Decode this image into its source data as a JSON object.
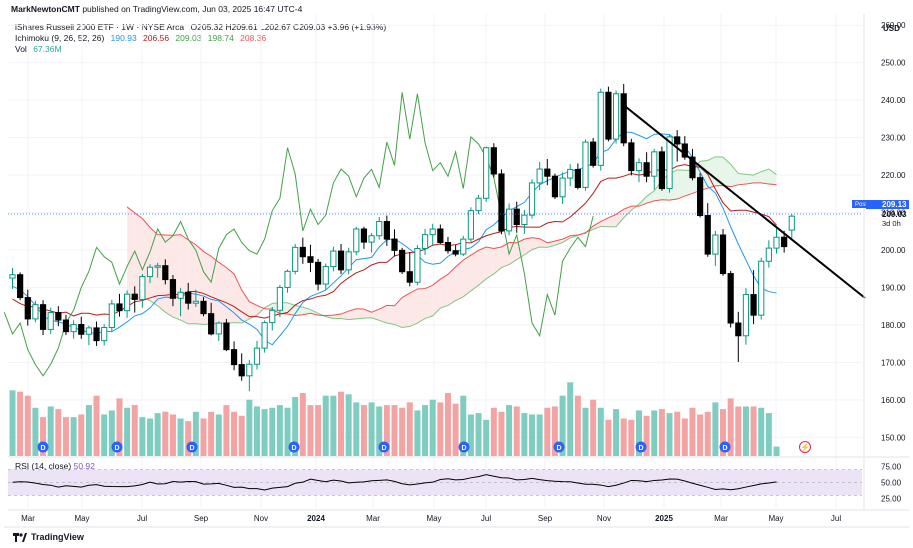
{
  "publisher": {
    "author": "MarkNewtonCMT",
    "text": "published on TradingView.com, Jun 03, 2025 16:47 UTC-4"
  },
  "legend": {
    "symbol": "iShares Russell 2000 ETF · 1W · NYSE Arca",
    "ohlc": "O205.32 H209.61 L202.67 C209.03 +3.96 (+1.93%)",
    "ichimoku_name": "Ichimoku (9, 26, 52, 26)",
    "ichimoku_values": [
      "190.93",
      "206.56",
      "209.03",
      "198.74",
      "208.36"
    ],
    "vol_name": "Vol",
    "vol_value": "67.36M",
    "rsi_name": "RSI (14, close)",
    "rsi_value": "50.92"
  },
  "colors": {
    "up": "#089981",
    "down": "#000000",
    "tenkan": "#2196f3",
    "kijun": "#b71c1c",
    "chikou": "#43a047",
    "span_a": "#81c784",
    "span_b": "#ef5350",
    "vol_up": "#7fcdc1",
    "vol_down": "#f4a3a3",
    "rsi": "#7e57c2",
    "rsi_band": "#ede3f7"
  },
  "chart_data": {
    "type": "candlestick",
    "currency": "USD",
    "ylim": [
      145,
      263
    ],
    "y_ticks": [
      150,
      160,
      170,
      180,
      190,
      200,
      210,
      220,
      230,
      240,
      250,
      260
    ],
    "x_labels": [
      "Mar",
      "May",
      "Jul",
      "Sep",
      "Nov",
      "2024",
      "Mar",
      "May",
      "Jul",
      "Sep",
      "Nov",
      "2025",
      "Mar",
      "May",
      "Jul"
    ],
    "price_tags": {
      "post_label": "Post",
      "post_value": "209.13",
      "last_value": "209.03",
      "countdown": "3d 0h"
    },
    "rsi_ticks": [
      "75.00",
      "50.00",
      "25.00"
    ],
    "candles": [
      [
        192.5,
        195.2,
        189.6,
        193.4
      ],
      [
        193.4,
        194.0,
        186.6,
        187.3
      ],
      [
        187.3,
        189.4,
        179.8,
        181.6
      ],
      [
        181.6,
        186.4,
        180.7,
        185.4
      ],
      [
        185.4,
        186.6,
        177.3,
        178.8
      ],
      [
        178.8,
        184.6,
        177.6,
        183.3
      ],
      [
        183.3,
        185.0,
        179.7,
        181.3
      ],
      [
        181.3,
        182.7,
        177.3,
        178.2
      ],
      [
        178.2,
        181.2,
        176.3,
        180.1
      ],
      [
        180.1,
        182.2,
        176.3,
        177.5
      ],
      [
        177.5,
        179.8,
        174.6,
        179.2
      ],
      [
        179.2,
        180.9,
        174.4,
        175.8
      ],
      [
        175.8,
        180.2,
        174.5,
        179.3
      ],
      [
        179.3,
        186.7,
        178.2,
        185.6
      ],
      [
        185.6,
        188.3,
        182.2,
        183.8
      ],
      [
        183.8,
        189.2,
        181.9,
        188.2
      ],
      [
        188.2,
        190.3,
        183.3,
        186.8
      ],
      [
        186.8,
        193.6,
        184.6,
        192.9
      ],
      [
        192.9,
        196.2,
        191.2,
        195.4
      ],
      [
        195.4,
        196.6,
        192.6,
        195.8
      ],
      [
        195.8,
        197.5,
        190.8,
        192.1
      ],
      [
        192.1,
        193.3,
        185.0,
        187.1
      ],
      [
        187.1,
        189.9,
        182.3,
        188.7
      ],
      [
        188.7,
        191.2,
        184.1,
        185.8
      ],
      [
        185.8,
        189.4,
        184.8,
        186.3
      ],
      [
        186.3,
        187.4,
        182.3,
        183.0
      ],
      [
        183.0,
        185.9,
        177.2,
        177.6
      ],
      [
        177.6,
        180.9,
        175.7,
        180.5
      ],
      [
        180.5,
        181.6,
        173.0,
        173.4
      ],
      [
        173.4,
        175.6,
        167.9,
        169.4
      ],
      [
        169.4,
        172.4,
        165.1,
        166.4
      ],
      [
        166.4,
        170.6,
        162.3,
        169.5
      ],
      [
        169.5,
        175.7,
        168.1,
        173.8
      ],
      [
        173.8,
        181.2,
        172.6,
        180.6
      ],
      [
        180.6,
        184.8,
        178.5,
        183.9
      ],
      [
        183.9,
        190.7,
        182.1,
        190.0
      ],
      [
        190.0,
        194.8,
        188.6,
        194.3
      ],
      [
        194.3,
        201.6,
        193.5,
        200.7
      ],
      [
        200.7,
        203.3,
        196.3,
        198.2
      ],
      [
        198.2,
        201.4,
        194.1,
        196.7
      ],
      [
        196.7,
        197.6,
        189.2,
        190.9
      ],
      [
        190.9,
        196.4,
        189.4,
        195.6
      ],
      [
        195.6,
        200.9,
        194.3,
        199.7
      ],
      [
        199.7,
        201.6,
        193.6,
        194.7
      ],
      [
        194.7,
        200.6,
        193.5,
        199.5
      ],
      [
        199.5,
        206.2,
        198.6,
        205.6
      ],
      [
        205.6,
        206.2,
        200.3,
        202.1
      ],
      [
        202.1,
        204.5,
        199.3,
        203.8
      ],
      [
        203.8,
        208.8,
        202.8,
        207.6
      ],
      [
        207.6,
        209.2,
        201.1,
        202.9
      ],
      [
        202.9,
        205.5,
        198.3,
        199.9
      ],
      [
        199.9,
        200.6,
        193.6,
        194.2
      ],
      [
        194.2,
        199.4,
        190.3,
        191.4
      ],
      [
        191.4,
        201.3,
        190.5,
        200.4
      ],
      [
        200.4,
        205.6,
        198.7,
        204.1
      ],
      [
        204.1,
        207.0,
        201.0,
        205.6
      ],
      [
        205.6,
        206.8,
        201.5,
        202.0
      ],
      [
        202.0,
        203.5,
        199.0,
        199.8
      ],
      [
        199.8,
        201.3,
        198.3,
        198.9
      ],
      [
        198.9,
        203.8,
        198.4,
        202.9
      ],
      [
        202.9,
        211.4,
        202.1,
        210.5
      ],
      [
        210.5,
        214.7,
        209.6,
        213.8
      ],
      [
        213.8,
        227.6,
        212.8,
        227.3
      ],
      [
        227.3,
        228.5,
        219.4,
        220.3
      ],
      [
        220.3,
        221.5,
        204.2,
        205.1
      ],
      [
        205.1,
        212.4,
        203.9,
        210.9
      ],
      [
        210.9,
        212.9,
        204.6,
        206.8
      ],
      [
        206.8,
        210.7,
        204.3,
        209.3
      ],
      [
        209.3,
        218.9,
        208.4,
        217.9
      ],
      [
        217.9,
        223.5,
        216.0,
        221.6
      ],
      [
        221.6,
        224.3,
        217.3,
        219.7
      ],
      [
        219.7,
        220.4,
        213.6,
        214.2
      ],
      [
        214.2,
        220.7,
        212.3,
        219.2
      ],
      [
        219.2,
        222.9,
        217.0,
        221.5
      ],
      [
        221.5,
        223.1,
        216.2,
        216.7
      ],
      [
        216.7,
        229.5,
        215.8,
        228.8
      ],
      [
        228.8,
        229.9,
        222.0,
        222.6
      ],
      [
        222.6,
        243.1,
        221.2,
        242.1
      ],
      [
        242.1,
        243.6,
        229.0,
        229.6
      ],
      [
        229.6,
        242.6,
        228.4,
        241.7
      ],
      [
        241.7,
        244.3,
        227.7,
        228.6
      ],
      [
        228.6,
        229.7,
        219.9,
        221.2
      ],
      [
        221.2,
        224.5,
        218.1,
        223.3
      ],
      [
        223.3,
        226.1,
        218.1,
        219.7
      ],
      [
        219.7,
        227.0,
        216.1,
        226.2
      ],
      [
        226.2,
        227.6,
        215.8,
        216.4
      ],
      [
        216.4,
        230.7,
        215.3,
        230.2
      ],
      [
        230.2,
        232.0,
        223.6,
        228.3
      ],
      [
        228.3,
        230.4,
        224.1,
        224.8
      ],
      [
        224.8,
        227.0,
        218.6,
        219.3
      ],
      [
        219.3,
        220.5,
        208.7,
        209.2
      ],
      [
        209.2,
        212.5,
        198.2,
        198.9
      ],
      [
        198.9,
        205.1,
        195.7,
        204.0
      ],
      [
        204.0,
        205.6,
        193.1,
        193.7
      ],
      [
        193.7,
        194.4,
        179.3,
        180.5
      ],
      [
        180.5,
        183.5,
        170.1,
        177.1
      ],
      [
        177.1,
        189.8,
        174.7,
        188.1
      ],
      [
        188.1,
        194.6,
        180.2,
        182.6
      ],
      [
        182.6,
        197.9,
        181.4,
        197.0
      ],
      [
        197.0,
        202.6,
        195.3,
        200.5
      ],
      [
        200.5,
        206.0,
        199.1,
        203.4
      ],
      [
        203.4,
        205.1,
        199.3,
        200.9
      ],
      [
        205.32,
        209.61,
        202.67,
        209.03
      ]
    ],
    "volume": [
      49,
      48,
      45,
      36,
      29,
      37,
      35,
      29,
      29,
      31,
      38,
      45,
      31,
      34,
      43,
      36,
      38,
      29,
      28,
      32,
      33,
      31,
      28,
      26,
      33,
      28,
      33,
      31,
      38,
      33,
      30,
      42,
      37,
      35,
      36,
      38,
      36,
      44,
      47,
      38,
      38,
      45,
      45,
      48,
      46,
      40,
      38,
      40,
      37,
      38,
      38,
      36,
      40,
      34,
      38,
      42,
      40,
      47,
      39,
      45,
      31,
      32,
      27,
      36,
      33,
      38,
      37,
      32,
      31,
      31,
      36,
      37,
      45,
      55,
      45,
      36,
      42,
      36,
      27,
      35,
      28,
      27,
      34,
      30,
      34,
      35,
      32,
      33,
      28,
      36,
      31,
      33,
      40,
      35,
      43,
      37,
      37,
      37,
      36,
      32,
      7
    ],
    "tenkan": [
      190.3,
      189.4,
      187.5,
      185.3,
      182.4,
      181.2,
      180.8,
      180.2,
      179.3,
      178.6,
      178.0,
      177.7,
      178.3,
      178.2,
      179.4,
      180.8,
      182.4,
      183.0,
      184.5,
      186.9,
      187.4,
      187.3,
      187.5,
      188.5,
      188.2,
      187.7,
      186.8,
      186.4,
      184.8,
      183.2,
      181.3,
      180.2,
      178.8,
      175.9,
      174.7,
      177.1,
      179.6,
      183.0,
      186.0,
      187.6,
      188.4,
      189.3,
      191.2,
      193.1,
      195.3,
      197.4,
      197.7,
      198.0,
      200.8,
      202.7,
      203.0,
      201.7,
      200.2,
      198.6,
      196.7,
      196.2,
      196.5,
      198.3,
      199.5,
      200.1,
      200.6,
      202.2,
      205.4,
      206.7,
      208.7,
      210.4,
      211.6,
      212.7,
      215.3,
      217.4,
      218.5,
      219.4,
      220.3,
      221.0,
      221.5,
      222.1,
      223.3,
      226.0,
      226.8,
      229.6,
      231.5,
      231.4,
      230.6,
      229.7,
      230.9,
      231.0,
      230.8,
      229.3,
      227.6,
      224.7,
      220.8,
      217.0,
      215.2,
      211.2,
      206.2,
      201.6,
      197.3,
      193.1,
      189.8,
      188.9,
      188.5
    ],
    "kijun": [
      186.9,
      185.7,
      184.9,
      184.8,
      184.2,
      183.7,
      183.1,
      183.4,
      182.4,
      183.1,
      183.1,
      182.6,
      182.9,
      182.7,
      183.7,
      184.9,
      186.2,
      186.5,
      187.2,
      187.8,
      187.9,
      188.2,
      188.0,
      188.9,
      188.9,
      188.4,
      187.5,
      186.7,
      185.9,
      184.9,
      183.5,
      182.2,
      182.2,
      181.8,
      182.4,
      182.9,
      183.3,
      185.3,
      186.5,
      186.9,
      187.6,
      187.9,
      188.9,
      191.1,
      192.6,
      193.9,
      194.7,
      196.0,
      196.7,
      196.7,
      198.4,
      199.0,
      199.3,
      199.5,
      200.2,
      201.3,
      201.6,
      201.2,
      201.4,
      202.0,
      201.9,
      202.9,
      203.8,
      204.4,
      204.9,
      206.0,
      206.3,
      206.1,
      206.1,
      206.1,
      207.2,
      207.6,
      207.5,
      208.8,
      210.6,
      212.5,
      215.1,
      218.3,
      219.2,
      219.2,
      219.7,
      220.4,
      220.0,
      220.4,
      221.2,
      221.5,
      221.3,
      222.4,
      222.8,
      222.3,
      222.1,
      220.2,
      216.2,
      212.6,
      210.4,
      210.6,
      210.6,
      210.1,
      209.6,
      208.9,
      206.6
    ],
    "span_a": [
      187.0,
      187.1,
      187.3,
      186.5,
      185.1,
      183.4,
      182.1,
      181.3,
      180.3,
      180.3,
      180.1,
      180.3,
      180.4,
      180.4,
      180.6,
      180.5,
      181.6,
      182.6,
      184.6,
      185.7,
      185.9,
      185.9,
      185.2,
      184.7,
      184.1,
      183.1,
      182.2,
      181.7,
      181.7,
      181.4,
      181.6,
      181.8,
      181.9,
      181.2,
      180.5,
      180.1,
      179.3,
      179.6,
      180.5,
      181.7,
      182.4,
      184.5,
      185.2,
      186.5,
      187.5,
      189.1,
      190.6,
      192.3,
      193.6,
      195.3,
      196.1,
      197.4,
      198.7,
      200.1,
      200.8,
      200.7,
      201.3,
      202.0,
      203.2,
      203.9,
      204.7,
      205.5,
      206.3,
      206.2,
      206.2,
      208.6,
      210.6,
      212.2,
      214.3,
      215.8,
      218.6,
      220.4,
      221.4,
      221.3,
      221.2,
      223.7,
      223.9,
      224.9,
      224.8,
      222.9,
      220.4,
      220.2,
      220.0,
      220.9,
      221.6,
      220.1
    ],
    "span_b": [
      211.5,
      209.9,
      208.4,
      206.0,
      204.1,
      204.0,
      203.9,
      204.1,
      202.7,
      201.4,
      199.6,
      198.3,
      196.7,
      195.3,
      193.6,
      189.3,
      186.2,
      185.2,
      184.3,
      184.2,
      183.0,
      182.9,
      182.5,
      182.7,
      183.1,
      182.6,
      182.5,
      182.6,
      182.9,
      183.7,
      184.3,
      184.2,
      183.4,
      184.2,
      185.2,
      185.1,
      187.3,
      188.5,
      189.6,
      189.7,
      190.6,
      192.2,
      193.5,
      195.5,
      197.3,
      198.6,
      199.9,
      200.8,
      200.4,
      200.8,
      202.0,
      201.9,
      202.9,
      203.3,
      203.0,
      201.9,
      202.4,
      202.9,
      203.8,
      204.0,
      204.5,
      206.4,
      207.6,
      208.6,
      209.5,
      210.9,
      211.7,
      211.7,
      212.5,
      213.1,
      213.4,
      213.3,
      213.6,
      214.4,
      215.1,
      215.9,
      216.5,
      217.1,
      217.2,
      216.9,
      217.4,
      217.6,
      217.9,
      217.9,
      217.6,
      217.4
    ],
    "rsi": [
      50.3,
      51.1,
      50.8,
      49.0,
      46.9,
      45.8,
      42.9,
      45.0,
      44.0,
      42.8,
      45.7,
      46.6,
      44.1,
      43.7,
      43.6,
      43.6,
      44.7,
      46.9,
      50.5,
      47.7,
      48.1,
      51.5,
      50.5,
      51.5,
      51.3,
      47.5,
      47.9,
      48.7,
      45.6,
      42.5,
      42.8,
      40.4,
      40.4,
      38.3,
      41.2,
      42.4,
      43.6,
      48.8,
      50.5,
      55.2,
      53.1,
      51.1,
      53.7,
      52.3,
      49.4,
      50.3,
      50.9,
      52.7,
      53.3,
      54.0,
      51.8,
      48.0,
      46.3,
      47.6,
      49.5,
      50.5,
      54.6,
      55.9,
      54.1,
      54.7,
      57.3,
      59.2,
      62.2,
      59.8,
      57.4,
      56.9,
      54.1,
      54.6,
      56.4,
      54.4,
      52.9,
      51.9,
      51.4,
      51.2,
      49.3,
      47.3,
      47.2,
      46.0,
      43.6,
      45.8,
      49.1,
      53.2,
      52.7,
      51.4,
      53.2,
      53.9,
      55.4,
      55.3,
      52.4,
      48.8,
      45.7,
      42.5,
      39.2,
      40.0,
      38.8,
      40.3,
      42.9,
      45.3,
      47.9,
      49.3,
      50.9
    ]
  },
  "branding": {
    "name": "TradingView"
  }
}
